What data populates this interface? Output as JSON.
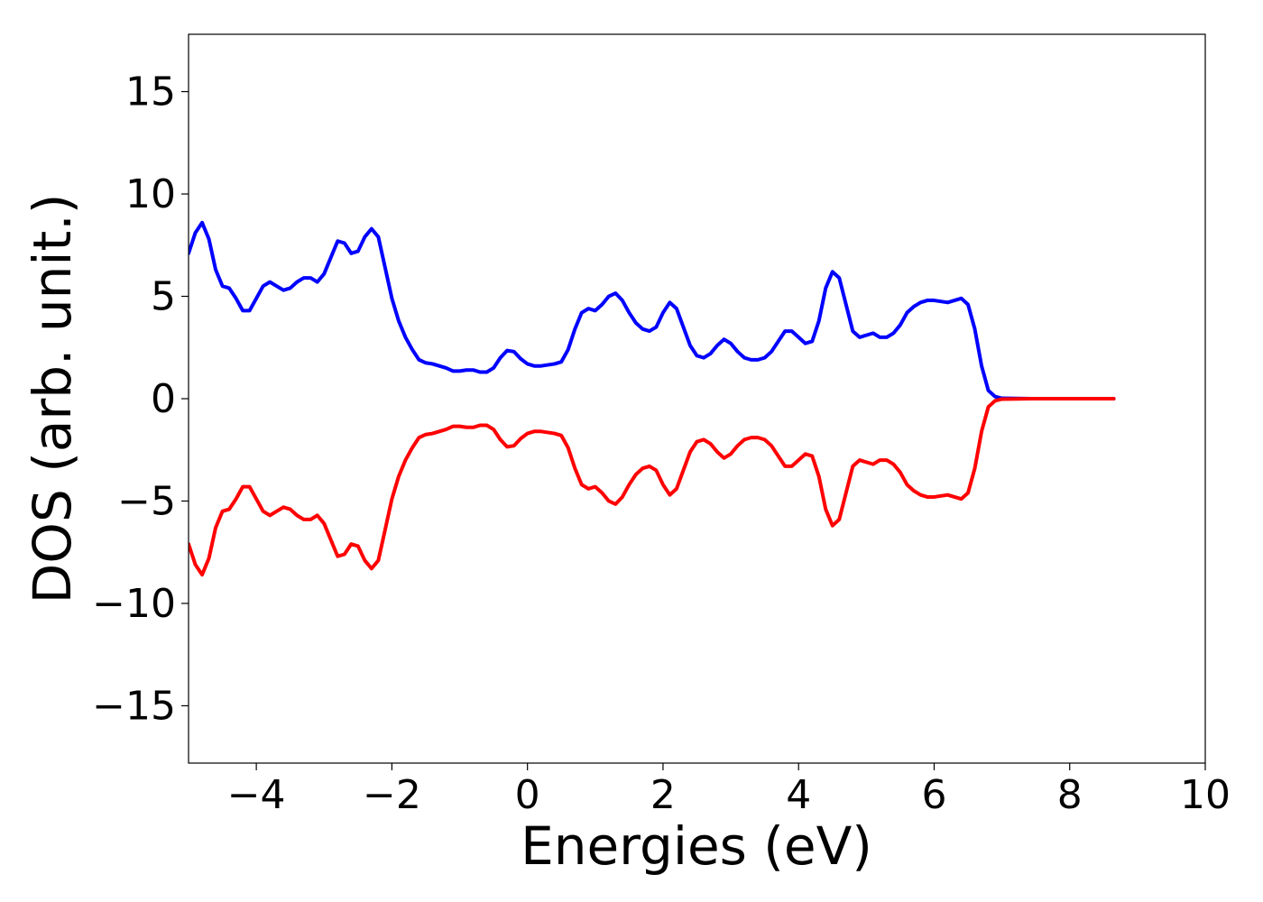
{
  "chart_data": {
    "type": "line",
    "title": "",
    "xlabel": "Energies (eV)",
    "ylabel": "DOS (arb. unit.)",
    "xlim": [
      -5,
      10
    ],
    "ylim": [
      -17.8,
      17.8
    ],
    "x_ticks": [
      -4,
      -2,
      0,
      2,
      4,
      6,
      8,
      10
    ],
    "x_tick_labels": [
      "−4",
      "−2",
      "0",
      "2",
      "4",
      "6",
      "8",
      "10"
    ],
    "y_ticks": [
      -15,
      -10,
      -5,
      0,
      5,
      10,
      15
    ],
    "y_tick_labels": [
      "−15",
      "−10",
      "−5",
      "0",
      "5",
      "10",
      "15"
    ],
    "grid": false,
    "series": [
      {
        "color": "#0000ff",
        "x": [
          -5.0,
          -4.9,
          -4.8,
          -4.7,
          -4.6,
          -4.5,
          -4.4,
          -4.3,
          -4.2,
          -4.1,
          -4.0,
          -3.9,
          -3.8,
          -3.7,
          -3.6,
          -3.5,
          -3.4,
          -3.3,
          -3.2,
          -3.1,
          -3.0,
          -2.9,
          -2.8,
          -2.7,
          -2.6,
          -2.5,
          -2.4,
          -2.3,
          -2.2,
          -2.1,
          -2.0,
          -1.9,
          -1.8,
          -1.7,
          -1.6,
          -1.5,
          -1.4,
          -1.3,
          -1.2,
          -1.1,
          -1.0,
          -0.9,
          -0.8,
          -0.7,
          -0.6,
          -0.5,
          -0.4,
          -0.3,
          -0.2,
          -0.1,
          0.0,
          0.1,
          0.2,
          0.3,
          0.4,
          0.5,
          0.6,
          0.7,
          0.8,
          0.9,
          1.0,
          1.1,
          1.2,
          1.3,
          1.4,
          1.5,
          1.6,
          1.7,
          1.8,
          1.9,
          2.0,
          2.1,
          2.2,
          2.3,
          2.4,
          2.5,
          2.6,
          2.7,
          2.8,
          2.9,
          3.0,
          3.1,
          3.2,
          3.3,
          3.4,
          3.5,
          3.6,
          3.7,
          3.8,
          3.9,
          4.0,
          4.1,
          4.2,
          4.3,
          4.4,
          4.5,
          4.6,
          4.7,
          4.8,
          4.9,
          5.0,
          5.1,
          5.2,
          5.3,
          5.4,
          5.5,
          5.6,
          5.7,
          5.8,
          5.9,
          6.0,
          6.1,
          6.2,
          6.3,
          6.4,
          6.5,
          6.6,
          6.7,
          6.8,
          6.9,
          7.0,
          7.5,
          8.0,
          8.5,
          8.65
        ],
        "y": [
          7.1,
          8.1,
          8.6,
          7.8,
          6.3,
          5.5,
          5.4,
          4.9,
          4.3,
          4.3,
          4.9,
          5.5,
          5.7,
          5.5,
          5.3,
          5.4,
          5.7,
          5.9,
          5.9,
          5.7,
          6.1,
          6.9,
          7.7,
          7.6,
          7.1,
          7.2,
          7.9,
          8.3,
          7.9,
          6.4,
          4.9,
          3.8,
          3.0,
          2.4,
          1.9,
          1.75,
          1.7,
          1.6,
          1.5,
          1.35,
          1.35,
          1.4,
          1.4,
          1.3,
          1.3,
          1.5,
          2.0,
          2.35,
          2.3,
          1.95,
          1.7,
          1.6,
          1.6,
          1.65,
          1.7,
          1.8,
          2.4,
          3.4,
          4.2,
          4.4,
          4.3,
          4.6,
          5.0,
          5.15,
          4.8,
          4.2,
          3.7,
          3.4,
          3.3,
          3.5,
          4.2,
          4.7,
          4.4,
          3.5,
          2.6,
          2.1,
          2.0,
          2.2,
          2.6,
          2.9,
          2.7,
          2.3,
          2.0,
          1.9,
          1.9,
          2.0,
          2.3,
          2.8,
          3.3,
          3.3,
          3.0,
          2.7,
          2.8,
          3.8,
          5.4,
          6.2,
          5.9,
          4.6,
          3.3,
          3.0,
          3.1,
          3.2,
          3.0,
          3.0,
          3.2,
          3.6,
          4.2,
          4.5,
          4.7,
          4.8,
          4.8,
          4.75,
          4.7,
          4.8,
          4.9,
          4.6,
          3.4,
          1.6,
          0.4,
          0.1,
          0.02,
          0.0,
          0.0,
          0.0,
          0.0
        ]
      },
      {
        "color": "#ff0000",
        "x": [
          -5.0,
          -4.9,
          -4.8,
          -4.7,
          -4.6,
          -4.5,
          -4.4,
          -4.3,
          -4.2,
          -4.1,
          -4.0,
          -3.9,
          -3.8,
          -3.7,
          -3.6,
          -3.5,
          -3.4,
          -3.3,
          -3.2,
          -3.1,
          -3.0,
          -2.9,
          -2.8,
          -2.7,
          -2.6,
          -2.5,
          -2.4,
          -2.3,
          -2.2,
          -2.1,
          -2.0,
          -1.9,
          -1.8,
          -1.7,
          -1.6,
          -1.5,
          -1.4,
          -1.3,
          -1.2,
          -1.1,
          -1.0,
          -0.9,
          -0.8,
          -0.7,
          -0.6,
          -0.5,
          -0.4,
          -0.3,
          -0.2,
          -0.1,
          0.0,
          0.1,
          0.2,
          0.3,
          0.4,
          0.5,
          0.6,
          0.7,
          0.8,
          0.9,
          1.0,
          1.1,
          1.2,
          1.3,
          1.4,
          1.5,
          1.6,
          1.7,
          1.8,
          1.9,
          2.0,
          2.1,
          2.2,
          2.3,
          2.4,
          2.5,
          2.6,
          2.7,
          2.8,
          2.9,
          3.0,
          3.1,
          3.2,
          3.3,
          3.4,
          3.5,
          3.6,
          3.7,
          3.8,
          3.9,
          4.0,
          4.1,
          4.2,
          4.3,
          4.4,
          4.5,
          4.6,
          4.7,
          4.8,
          4.9,
          5.0,
          5.1,
          5.2,
          5.3,
          5.4,
          5.5,
          5.6,
          5.7,
          5.8,
          5.9,
          6.0,
          6.1,
          6.2,
          6.3,
          6.4,
          6.5,
          6.6,
          6.7,
          6.8,
          6.9,
          7.0,
          7.5,
          8.0,
          8.5,
          8.65
        ],
        "y": [
          -7.1,
          -8.1,
          -8.6,
          -7.8,
          -6.3,
          -5.5,
          -5.4,
          -4.9,
          -4.3,
          -4.3,
          -4.9,
          -5.5,
          -5.7,
          -5.5,
          -5.3,
          -5.4,
          -5.7,
          -5.9,
          -5.9,
          -5.7,
          -6.1,
          -6.9,
          -7.7,
          -7.6,
          -7.1,
          -7.2,
          -7.9,
          -8.3,
          -7.9,
          -6.4,
          -4.9,
          -3.8,
          -3.0,
          -2.4,
          -1.9,
          -1.75,
          -1.7,
          -1.6,
          -1.5,
          -1.35,
          -1.35,
          -1.4,
          -1.4,
          -1.3,
          -1.3,
          -1.5,
          -2.0,
          -2.35,
          -2.3,
          -1.95,
          -1.7,
          -1.6,
          -1.6,
          -1.65,
          -1.7,
          -1.8,
          -2.4,
          -3.4,
          -4.2,
          -4.4,
          -4.3,
          -4.6,
          -5.0,
          -5.15,
          -4.8,
          -4.2,
          -3.7,
          -3.4,
          -3.3,
          -3.5,
          -4.2,
          -4.7,
          -4.4,
          -3.5,
          -2.6,
          -2.1,
          -2.0,
          -2.2,
          -2.6,
          -2.9,
          -2.7,
          -2.3,
          -2.0,
          -1.9,
          -1.9,
          -2.0,
          -2.3,
          -2.8,
          -3.3,
          -3.3,
          -3.0,
          -2.7,
          -2.8,
          -3.8,
          -5.4,
          -6.2,
          -5.9,
          -4.6,
          -3.3,
          -3.0,
          -3.1,
          -3.2,
          -3.0,
          -3.0,
          -3.2,
          -3.6,
          -4.2,
          -4.5,
          -4.7,
          -4.8,
          -4.8,
          -4.75,
          -4.7,
          -4.8,
          -4.9,
          -4.6,
          -3.4,
          -1.6,
          -0.4,
          -0.1,
          -0.02,
          0.0,
          0.0,
          0.0,
          0.0
        ]
      }
    ]
  }
}
